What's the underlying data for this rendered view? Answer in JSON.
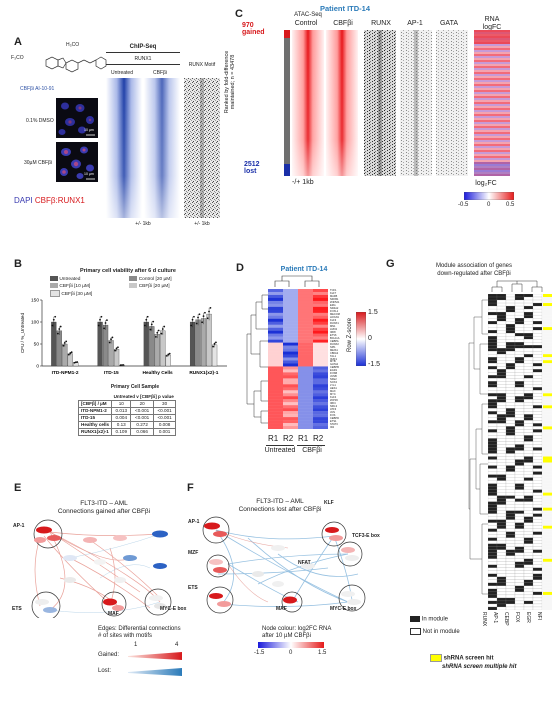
{
  "panels": {
    "a": "A",
    "b": "B",
    "c": "C",
    "d": "D",
    "e": "E",
    "f": "F",
    "g": "G"
  },
  "panelA": {
    "compound_name": "CBFβi AI-10-91",
    "chem_f3co": "F₃CO",
    "chem_h3co": "H₃CO",
    "row1_label": "0.1% DMSO",
    "row2_label": "30µM CBFβi",
    "scale_bar": "10 µm",
    "chip_title": "ChIP-Seq",
    "runx1": "RUNX1",
    "untreated": "Untreated",
    "cbfbi": "CBFβi",
    "runx_motif": "RUNX Motif",
    "kb1": "+/- 1kb",
    "kb2": "+/- 1kb",
    "stain_dapi": "DAPI",
    "stain_cbf": "CBFβ:RUNX1"
  },
  "panelB": {
    "title": "Primary cell viability after 6 d culture",
    "legend": [
      "Untreated",
      "Control [20 µM]",
      "CBFβi [10 µM]",
      "CBFβi [20 µM]",
      "CBFβi [30 µM]"
    ],
    "ylabel": "CFU / %_Untreated",
    "xlabel": "Primary Cell Sample",
    "table_header": [
      "[CBFβ] / µM",
      "10",
      "20",
      "30"
    ],
    "table_caption": "Untreated v [CBFβi] p value",
    "table_rows": [
      [
        "ITD-NPM1-2",
        "0.013",
        "<0.001",
        "<0.001"
      ],
      [
        "ITD-15",
        "0.004",
        "<0.001",
        "<0.001"
      ],
      [
        "Healthy cells",
        "0.13",
        "0.272",
        "0.008"
      ],
      [
        "RUNX1(x2)-1",
        "0.109",
        "0.066",
        "0.001"
      ]
    ]
  },
  "chart_data": [
    {
      "type": "bar",
      "title": "Primary cell viability after 6 d culture",
      "categories": [
        "ITD-NPM1-2",
        "ITD-15",
        "Healthy Cells",
        "RUNX1(x2)-1"
      ],
      "xlabel": "Primary Cell Sample",
      "ylabel": "CFU / %_Untreated",
      "ylim": [
        0,
        150
      ],
      "yticks": [
        0,
        50,
        100,
        150
      ],
      "series": [
        {
          "name": "Untreated",
          "values": [
            100,
            100,
            100,
            100
          ],
          "color": "#555555"
        },
        {
          "name": "Control [20 µM]",
          "values": [
            80,
            93,
            90,
            105
          ],
          "color": "#8a8a8a"
        },
        {
          "name": "CBFβi [10 µM]",
          "values": [
            50,
            58,
            72,
            108
          ],
          "color": "#aaaaaa"
        },
        {
          "name": "CBFβi [20 µM]",
          "values": [
            28,
            38,
            80,
            118
          ],
          "color": "#c8c8c8"
        },
        {
          "name": "CBFβi [30 µM]",
          "values": [
            8,
            2,
            25,
            48
          ],
          "color": "#e4e4e4"
        }
      ]
    },
    {
      "type": "heatmap",
      "columns": [
        "R1",
        "R2",
        "R1",
        "R2"
      ],
      "groups": [
        "Untreated",
        "CBFβi"
      ],
      "legend_title": "Row Z-score",
      "range": [
        -1.5,
        1.5
      ],
      "tick_labels": [
        "1.5",
        "0",
        "-1.5"
      ]
    }
  ],
  "panelC": {
    "title": "Patient ITD-14",
    "atac": "ATAC-Seq",
    "control": "Control",
    "cbfbi": "CBFβi",
    "runx": "RUNX",
    "ap1": "AP-1",
    "gata": "GATA",
    "rna": "RNA",
    "logfc": "logFC",
    "gained_n": "970",
    "gained": "gained",
    "lost_n": "2512",
    "lost": "lost",
    "ranked": "Ranked by fold-difference",
    "maintained": "maintained; n = 43478",
    "kb": "-/+ 1kb",
    "cbar_title": "log₂FC",
    "cbar_min": "-0.5",
    "cbar_mid": "0",
    "cbar_max": "0.5"
  },
  "panelD": {
    "title": "Patient ITD-14",
    "r1a": "R1",
    "r2a": "R2",
    "r1b": "R1",
    "r2b": "R2",
    "untreated": "Untreated",
    "cbfbi": "CBFβi",
    "zscore": "Row Z-score",
    "z_hi": "1.5",
    "z_mid": "0",
    "z_lo": "-1.5",
    "genes": [
      "TCF1",
      "KLF7",
      "MAFB",
      "NFKB1",
      "ZNF521",
      "ERG",
      "NR4A2",
      "FOXL1",
      "MECOM",
      "HOXA9",
      "KLF3",
      "RUNX1",
      "MN1",
      "LMO2",
      "IRF8",
      "ETV6",
      "BCL11A",
      "CEBPA",
      "RUNX2",
      "SPI1",
      "MEIS1",
      "CBFA2",
      "TAL1",
      "IKZF1",
      "MYB",
      "GATA2",
      "CEBPB",
      "EGR1",
      "FOSB",
      "JUNB",
      "NFE2",
      "SOX4",
      "LYL1",
      "HES1",
      "MAX",
      "MYC",
      "KLF4",
      "ZFP36",
      "IRF4",
      "NFIL3",
      "ATF3",
      "JUN",
      "FOS",
      "CEBPD",
      "ETS1",
      "STAT3",
      "ID2"
    ]
  },
  "panelE": {
    "title1": "FLT3-ITD – AML",
    "title2": "Connections gained after CBFβi",
    "ap1": "AP-1",
    "ets": "ETS",
    "maf": "MAF",
    "mycbox": "MYC-E box",
    "edges_title": "Edges: Differential connections",
    "edges_sub": "# of sites with motifs",
    "e_min": "1",
    "e_max": "4",
    "gained": "Gained:",
    "lost": "Lost:"
  },
  "panelF": {
    "title1": "FLT3-ITD – AML",
    "title2": "Connections lost after CBFβi",
    "ap1": "AP-1",
    "klf": "KLF",
    "tcf": "TCF3-E box",
    "nfat": "NFAT",
    "mzf": "MZF",
    "ets": "ETS",
    "maf": "MAF",
    "mycbox": "MYC-E box",
    "node_title": "Node colour: log2FC RNA",
    "node_sub": "after 10 µM CBFβi",
    "n_min": "-1.5",
    "n_mid": "0",
    "n_max": "1.5"
  },
  "panelG": {
    "title1": "Module association of genes",
    "title2": "down-regulated after CBFβi",
    "columns": [
      "RUNX",
      "AP-1",
      "CEBP",
      "FOX",
      "EGR",
      "NFI"
    ],
    "in_module": "In module",
    "not_in_module": "Not in module",
    "shrna": "shRNA screen hit",
    "shrna_multi": "shRNA screen multiple hit"
  },
  "colors": {
    "red": "#d7191c",
    "blue": "#2c62c4",
    "dark": "#222222",
    "highlight": "#ffff00",
    "title_blue": "#2b7bb9"
  }
}
